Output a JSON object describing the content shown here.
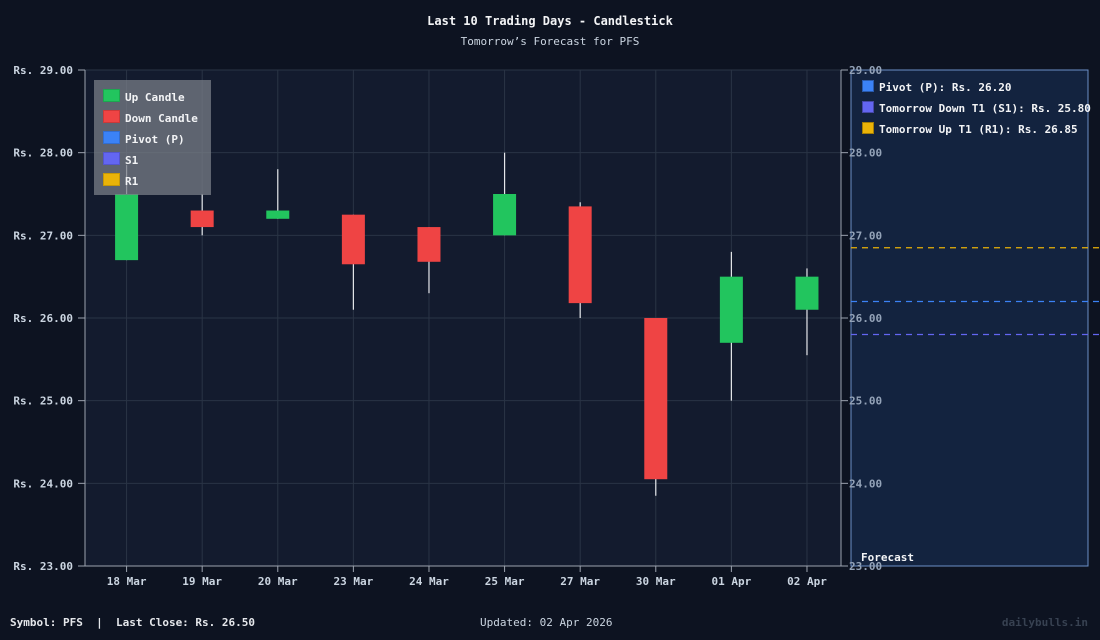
{
  "header": {
    "title": "Last 10 Trading Days - Candlestick",
    "subtitle": "Tomorrow’s Forecast for PFS"
  },
  "legend": {
    "items": [
      {
        "label": "Up Candle",
        "color": "#22c55e"
      },
      {
        "label": "Down Candle",
        "color": "#ef4444"
      },
      {
        "label": "Pivot (P)",
        "color": "#3b82f6"
      },
      {
        "label": "S1",
        "color": "#6366f1"
      },
      {
        "label": "R1",
        "color": "#eab308"
      }
    ]
  },
  "forecast_panel": {
    "label": "Forecast",
    "items": [
      {
        "label": "Pivot (P): Rs. 26.20",
        "color": "#3b82f6"
      },
      {
        "label": "Tomorrow Down T1 (S1): Rs. 25.80",
        "color": "#6366f1"
      },
      {
        "label": "Tomorrow Up T1 (R1): Rs. 26.85",
        "color": "#eab308"
      }
    ]
  },
  "footer": {
    "left": "Symbol: PFS  |  Last Close: Rs. 26.50",
    "center": "Updated: 02 Apr 2026",
    "right": "dailybulls.in"
  },
  "chart_data": {
    "type": "candlestick",
    "title": "Last 10 Trading Days - Candlestick",
    "subtitle": "Tomorrow’s Forecast for PFS",
    "xlabel": "",
    "ylabel": "",
    "ylim": [
      23,
      29
    ],
    "yticks": [
      23,
      24,
      25,
      26,
      27,
      28,
      29
    ],
    "ytick_labels_left": [
      "Rs. 23.00",
      "Rs. 24.00",
      "Rs. 25.00",
      "Rs. 26.00",
      "Rs. 27.00",
      "Rs. 28.00",
      "Rs. 29.00"
    ],
    "ytick_labels_right": [
      "23.00",
      "24.00",
      "25.00",
      "26.00",
      "27.00",
      "28.00",
      "29.00"
    ],
    "grid": true,
    "legend_position": "upper left",
    "categories": [
      "18 Mar",
      "19 Mar",
      "20 Mar",
      "23 Mar",
      "24 Mar",
      "25 Mar",
      "27 Mar",
      "30 Mar",
      "01 Apr",
      "02 Apr"
    ],
    "series": [
      {
        "name": "open",
        "values": [
          26.7,
          27.3,
          27.2,
          27.25,
          27.1,
          27.0,
          27.35,
          26.0,
          25.7,
          26.1
        ]
      },
      {
        "name": "high",
        "values": [
          27.85,
          27.5,
          27.8,
          27.25,
          27.1,
          28.0,
          27.4,
          26.0,
          26.8,
          26.6
        ]
      },
      {
        "name": "low",
        "values": [
          26.7,
          27.0,
          27.2,
          26.1,
          26.3,
          27.0,
          26.0,
          23.85,
          25.0,
          25.55
        ]
      },
      {
        "name": "close",
        "values": [
          27.5,
          27.1,
          27.3,
          26.65,
          26.68,
          27.5,
          26.18,
          24.05,
          26.5,
          26.5
        ]
      }
    ],
    "forecast_levels": [
      {
        "name": "Pivot (P)",
        "value": 26.2,
        "color": "#3b82f6"
      },
      {
        "name": "S1",
        "value": 25.8,
        "color": "#6366f1"
      },
      {
        "name": "R1",
        "value": 26.85,
        "color": "#eab308"
      }
    ],
    "colors": {
      "up": "#22c55e",
      "down": "#ef4444",
      "wick": "#e5e7eb"
    }
  }
}
